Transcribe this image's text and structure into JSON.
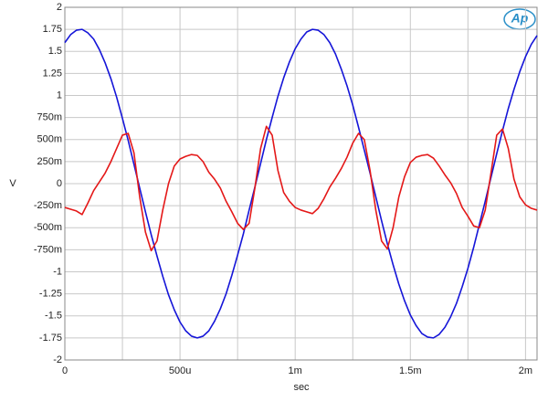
{
  "chart_data": {
    "type": "line",
    "logo": "Ap",
    "xlabel": "sec",
    "ylabel": "V",
    "xlim": [
      0,
      0.00205
    ],
    "ylim": [
      -2,
      2
    ],
    "grid": true,
    "xticks": [
      0,
      {
        "value": 0.0005,
        "label": "500u"
      },
      {
        "value": 0.001,
        "label": "1m"
      },
      {
        "value": 0.0015,
        "label": "1.5m"
      },
      {
        "value": 0.002,
        "label": "2m"
      }
    ],
    "x_minor_grid": [
      0.00025,
      0.00075,
      0.00125,
      0.00175
    ],
    "yticks": [
      -2,
      {
        "value": -1.75,
        "label": "-1.75"
      },
      -1.5,
      {
        "value": -1.25,
        "label": "-1.25"
      },
      -1,
      {
        "value": -0.75,
        "label": "-750m"
      },
      {
        "value": -0.5,
        "label": "-500m"
      },
      {
        "value": -0.25,
        "label": "-250m"
      },
      0,
      {
        "value": 0.25,
        "label": "250m"
      },
      {
        "value": 0.5,
        "label": "500m"
      },
      {
        "value": 0.75,
        "label": "750m"
      },
      1,
      1.25,
      1.5,
      1.75,
      2
    ],
    "x": [
      0,
      2.5e-05,
      5e-05,
      7.5e-05,
      0.0001,
      0.000125,
      0.00015,
      0.000175,
      0.0002,
      0.000225,
      0.00025,
      0.000275,
      0.0003,
      0.000325,
      0.00035,
      0.000375,
      0.0004,
      0.000425,
      0.00045,
      0.000475,
      0.0005,
      0.000525,
      0.00055,
      0.000575,
      0.0006,
      0.000625,
      0.00065,
      0.000675,
      0.0007,
      0.000725,
      0.00075,
      0.000775,
      0.0008,
      0.000825,
      0.00085,
      0.000875,
      0.0009,
      0.000925,
      0.00095,
      0.000975,
      0.001,
      0.001025,
      0.00105,
      0.001075,
      0.0011,
      0.001125,
      0.00115,
      0.001175,
      0.0012,
      0.001225,
      0.00125,
      0.001275,
      0.0013,
      0.001325,
      0.00135,
      0.001375,
      0.0014,
      0.001425,
      0.00145,
      0.001475,
      0.0015,
      0.001525,
      0.00155,
      0.001575,
      0.0016,
      0.001625,
      0.00165,
      0.001675,
      0.0017,
      0.001725,
      0.00175,
      0.001775,
      0.0018,
      0.001825,
      0.00185,
      0.001875,
      0.0019,
      0.001925,
      0.00195,
      0.001975,
      0.002,
      0.002025,
      0.00205
    ],
    "series": [
      {
        "color": "#1515d8",
        "values": [
          1.6,
          1.69,
          1.74,
          1.75,
          1.71,
          1.64,
          1.52,
          1.37,
          1.19,
          0.98,
          0.74,
          0.49,
          0.22,
          -0.05,
          -0.32,
          -0.58,
          -0.82,
          -1.05,
          -1.26,
          -1.43,
          -1.57,
          -1.67,
          -1.73,
          -1.75,
          -1.73,
          -1.67,
          -1.56,
          -1.42,
          -1.25,
          -1.04,
          -0.81,
          -0.57,
          -0.3,
          -0.04,
          0.23,
          0.5,
          0.75,
          0.99,
          1.2,
          1.38,
          1.53,
          1.64,
          1.72,
          1.75,
          1.74,
          1.69,
          1.6,
          1.47,
          1.3,
          1.11,
          0.89,
          0.64,
          0.38,
          0.12,
          -0.15,
          -0.42,
          -0.68,
          -0.92,
          -1.14,
          -1.33,
          -1.49,
          -1.61,
          -1.7,
          -1.74,
          -1.75,
          -1.71,
          -1.63,
          -1.51,
          -1.36,
          -1.17,
          -0.96,
          -0.72,
          -0.46,
          -0.2,
          0.07,
          0.34,
          0.6,
          0.85,
          1.07,
          1.27,
          1.44,
          1.58,
          1.68
        ]
      },
      {
        "color": "#e41818",
        "values": [
          -0.27,
          -0.29,
          -0.31,
          -0.35,
          -0.22,
          -0.08,
          0.02,
          0.12,
          0.25,
          0.4,
          0.55,
          0.57,
          0.35,
          -0.15,
          -0.55,
          -0.76,
          -0.65,
          -0.3,
          0.0,
          0.2,
          0.28,
          0.31,
          0.33,
          0.32,
          0.25,
          0.13,
          0.05,
          -0.05,
          -0.2,
          -0.32,
          -0.45,
          -0.52,
          -0.45,
          -0.05,
          0.4,
          0.65,
          0.55,
          0.15,
          -0.1,
          -0.2,
          -0.27,
          -0.3,
          -0.32,
          -0.34,
          -0.28,
          -0.17,
          -0.04,
          0.06,
          0.17,
          0.3,
          0.46,
          0.57,
          0.5,
          0.15,
          -0.3,
          -0.65,
          -0.74,
          -0.5,
          -0.15,
          0.08,
          0.24,
          0.3,
          0.32,
          0.33,
          0.29,
          0.2,
          0.1,
          0.01,
          -0.11,
          -0.27,
          -0.37,
          -0.48,
          -0.5,
          -0.3,
          0.12,
          0.55,
          0.62,
          0.4,
          0.05,
          -0.15,
          -0.24,
          -0.28,
          -0.3
        ]
      }
    ]
  }
}
